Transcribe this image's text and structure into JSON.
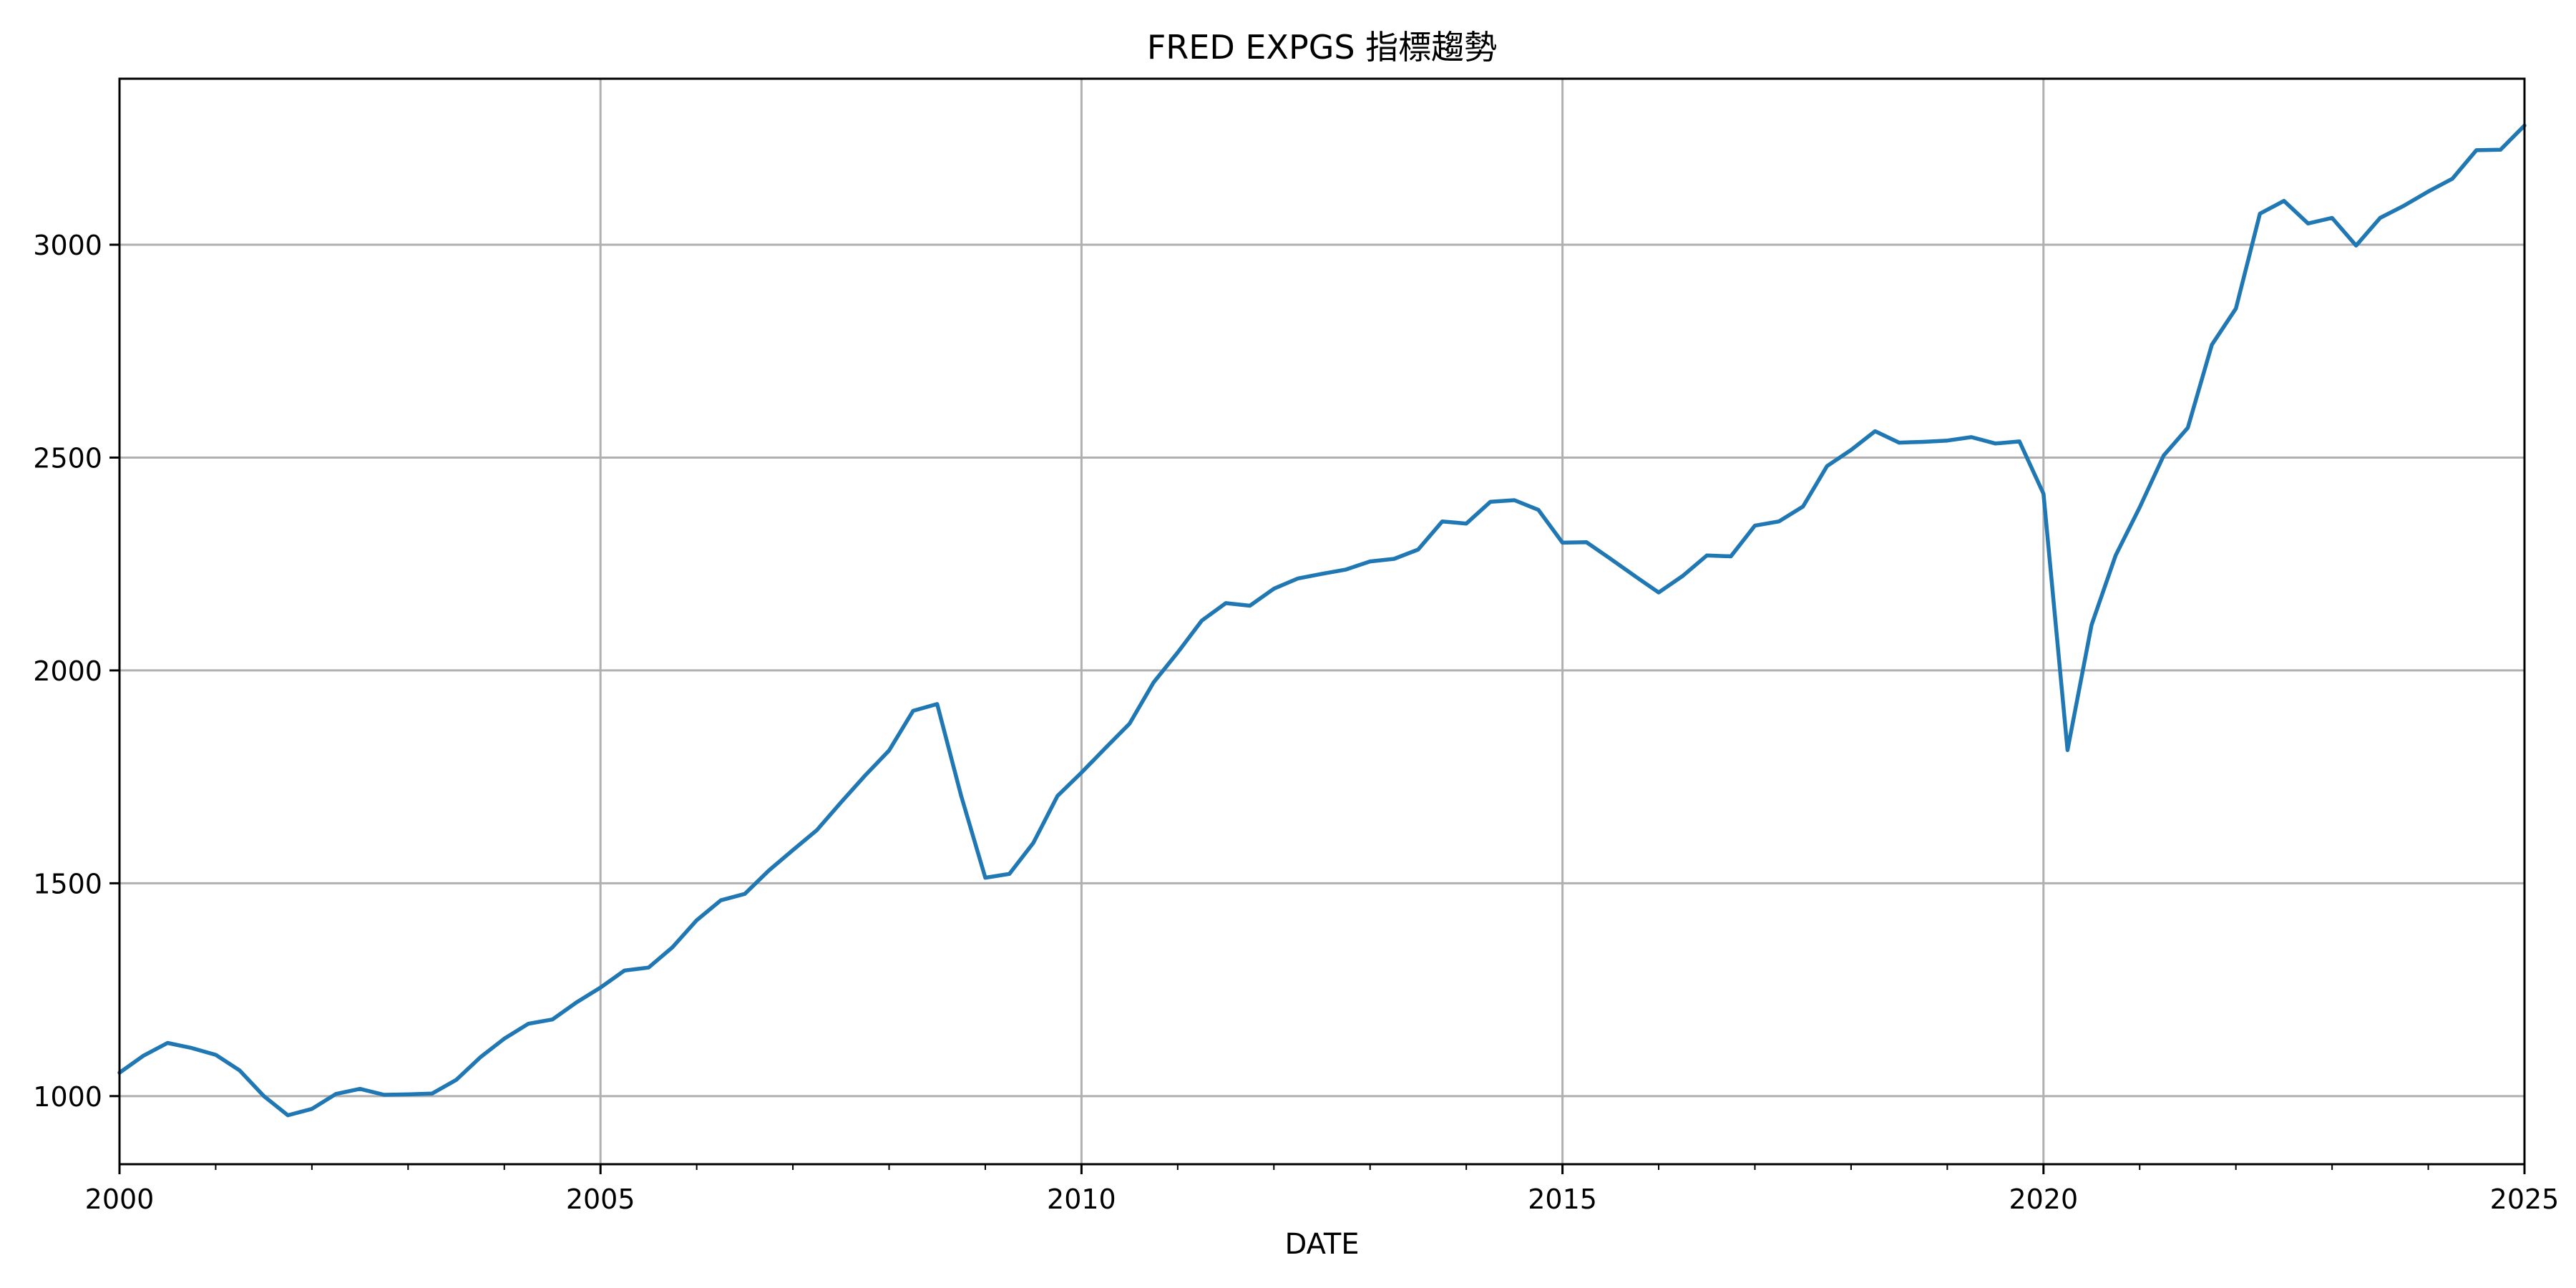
{
  "chart_data": {
    "type": "line",
    "title": "FRED EXPGS 指標趨勢",
    "xlabel": "DATE",
    "ylabel": "",
    "xlim": [
      2000,
      2025
    ],
    "ylim": [
      840,
      3390
    ],
    "xticks": [
      2000,
      2005,
      2010,
      2015,
      2020,
      2025
    ],
    "xtick_labels": [
      "2000",
      "2005",
      "2010",
      "2015",
      "2020",
      "2025"
    ],
    "yticks": [
      1000,
      1500,
      2000,
      2500,
      3000
    ],
    "ytick_labels": [
      "1000",
      "1500",
      "2000",
      "2500",
      "3000"
    ],
    "grid": true,
    "series": [
      {
        "color": "#1f77b4",
        "x": [
          2000.0,
          2000.25,
          2000.5,
          2000.75,
          2001.0,
          2001.25,
          2001.5,
          2001.75,
          2002.0,
          2002.25,
          2002.5,
          2002.75,
          2003.0,
          2003.25,
          2003.5,
          2003.75,
          2004.0,
          2004.25,
          2004.5,
          2004.75,
          2005.0,
          2005.25,
          2005.5,
          2005.75,
          2006.0,
          2006.25,
          2006.5,
          2006.75,
          2007.0,
          2007.25,
          2007.5,
          2007.75,
          2008.0,
          2008.25,
          2008.5,
          2008.75,
          2009.0,
          2009.25,
          2009.5,
          2009.75,
          2010.0,
          2010.25,
          2010.5,
          2010.75,
          2011.0,
          2011.25,
          2011.5,
          2011.75,
          2012.0,
          2012.25,
          2012.5,
          2012.75,
          2013.0,
          2013.25,
          2013.5,
          2013.75,
          2014.0,
          2014.25,
          2014.5,
          2014.75,
          2015.0,
          2015.25,
          2015.5,
          2015.75,
          2016.0,
          2016.25,
          2016.5,
          2016.75,
          2017.0,
          2017.25,
          2017.5,
          2017.75,
          2018.0,
          2018.25,
          2018.5,
          2018.75,
          2019.0,
          2019.25,
          2019.5,
          2019.75,
          2020.0,
          2020.25,
          2020.5,
          2020.75,
          2021.0,
          2021.25,
          2021.5,
          2021.75,
          2022.0,
          2022.25,
          2022.5,
          2022.75,
          2023.0,
          2023.25,
          2023.5,
          2023.75,
          2024.0,
          2024.25,
          2024.5,
          2024.75,
          2025.0
        ],
        "values": [
          1055,
          1095,
          1125,
          1113,
          1097,
          1060,
          1000,
          955,
          970,
          1005,
          1017,
          1003,
          1004,
          1006,
          1038,
          1091,
          1135,
          1170,
          1180,
          1220,
          1255,
          1295,
          1302,
          1350,
          1413,
          1460,
          1475,
          1530,
          1578,
          1625,
          1690,
          1753,
          1812,
          1905,
          1921,
          1705,
          1513,
          1522,
          1595,
          1705,
          1760,
          1818,
          1875,
          1972,
          2042,
          2117,
          2158,
          2152,
          2192,
          2216,
          2227,
          2237,
          2256,
          2262,
          2284,
          2350,
          2345,
          2396,
          2400,
          2377,
          2300,
          2301,
          2262,
          2222,
          2183,
          2222,
          2270,
          2268,
          2340,
          2350,
          2385,
          2480,
          2518,
          2562,
          2535,
          2537,
          2540,
          2548,
          2533,
          2538,
          2415,
          1813,
          2107,
          2270,
          2383,
          2505,
          2570,
          2765,
          2850,
          3073,
          3103,
          3050,
          3063,
          2998,
          3063,
          3092,
          3125,
          3155,
          3222,
          3223,
          3280
        ]
      }
    ]
  }
}
